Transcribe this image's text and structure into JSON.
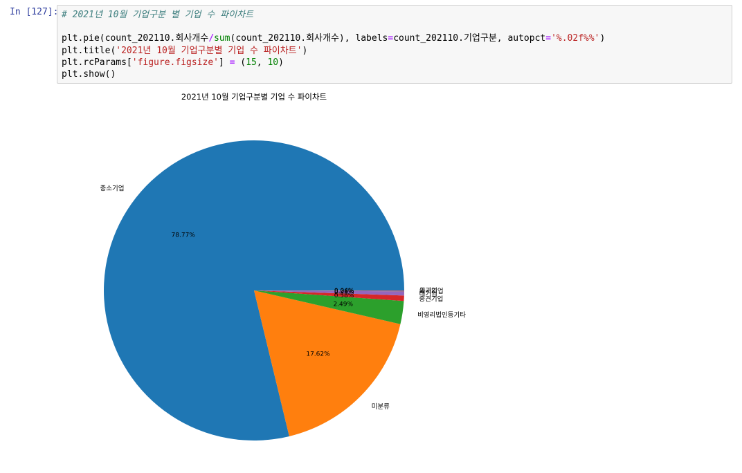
{
  "cell": {
    "prompt": "In [127]:",
    "code": {
      "comment": "# 2021년 10월 기업구분 별 기업 수 파이차트",
      "line1_a": "plt.pie(count_202110.회사개수",
      "line1_op": "/",
      "line1_sum": "sum",
      "line1_b": "(count_202110.회사개수), labels",
      "line1_eq": "=",
      "line1_c": "count_202110.기업구분, autopct",
      "line1_eq2": "=",
      "line1_str": "'%.02f%%'",
      "line1_end": ")",
      "line2_a": "plt.title(",
      "line2_str": "'2021년 10월 기업구분별 기업 수 파이차트'",
      "line2_end": ")",
      "line3_a": "plt.rcParams[",
      "line3_str": "'figure.figsize'",
      "line3_b": "] ",
      "line3_eq": "=",
      "line3_c": " (",
      "line3_n1": "15",
      "line3_d": ", ",
      "line3_n2": "10",
      "line3_e": ")",
      "line4": "plt.show()"
    }
  },
  "chart_data": {
    "type": "pie",
    "title": "2021년 10월 기업구분별 기업 수 파이차트",
    "startangle": 0,
    "slices": [
      {
        "label": "중소기업",
        "value": 78.77,
        "pct": "78.77%",
        "color": "#1f77b4"
      },
      {
        "label": "미분류",
        "value": 17.62,
        "pct": "17.62%",
        "color": "#ff7f0e"
      },
      {
        "label": "비영리법인등기타",
        "value": 2.49,
        "pct": "2.49%",
        "color": "#2ca02c"
      },
      {
        "label": "중견기업",
        "value": 0.58,
        "pct": "0.58%",
        "color": "#d62728"
      },
      {
        "label": "대기업",
        "value": 0.44,
        "pct": "0.44%",
        "color": "#9467bd"
      },
      {
        "label": "외국기업",
        "value": 0.06,
        "pct": "0.06%",
        "color": "#8c564b"
      },
      {
        "label": "공기업",
        "value": 0.04,
        "pct": "0.04%",
        "color": "#e377c2"
      }
    ]
  }
}
